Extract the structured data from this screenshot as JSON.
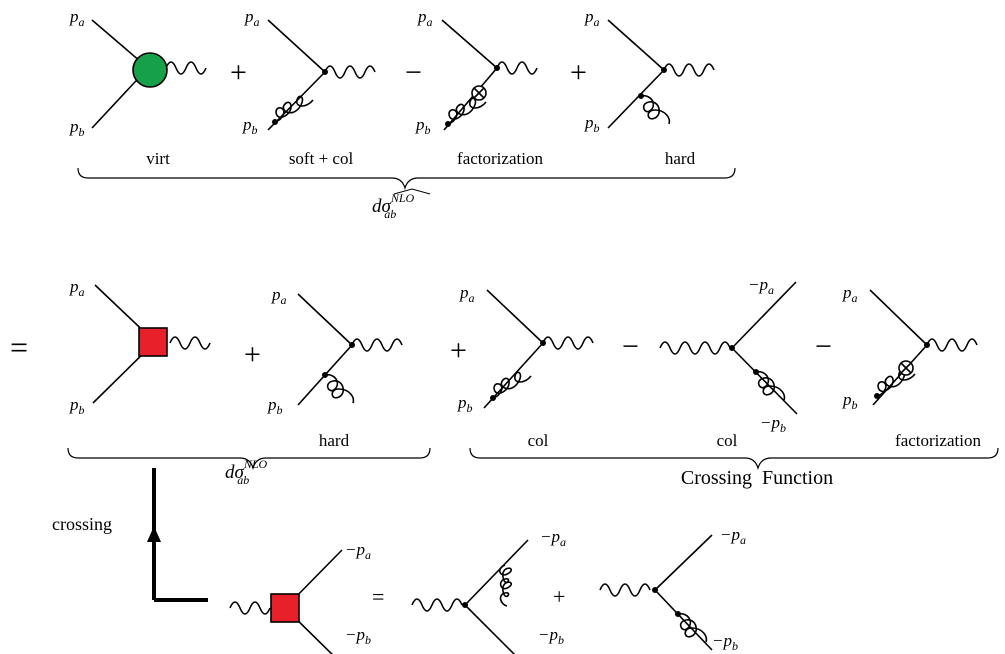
{
  "colors": {
    "blob": "#16a04a",
    "square": "#e8202a",
    "line": "#000000"
  },
  "labels": {
    "pa": "p",
    "pa_sub": "a",
    "pb": "p",
    "pb_sub": "b",
    "mpa": "−p",
    "mpb": "−p"
  },
  "top": {
    "captions": [
      "virt",
      "soft + col",
      "factorization",
      "hard"
    ],
    "ops": [
      "+",
      "−",
      "+"
    ],
    "brace_label_main": "dσ",
    "brace_label_sup": "NLO",
    "brace_label_sup_prefix": "N",
    "brace_label_sub": "ab"
  },
  "middle": {
    "equals": "=",
    "ops": [
      "+",
      "+",
      "−",
      "−"
    ],
    "captions": [
      "hard",
      "col",
      "col",
      "factorization"
    ],
    "brace_left_main": "dσ",
    "brace_left_sup": "NLO",
    "brace_left_sub": "ab",
    "brace_right": "Crossing  Function"
  },
  "bottom": {
    "crossing": "crossing",
    "ops": [
      "=",
      "+"
    ]
  }
}
